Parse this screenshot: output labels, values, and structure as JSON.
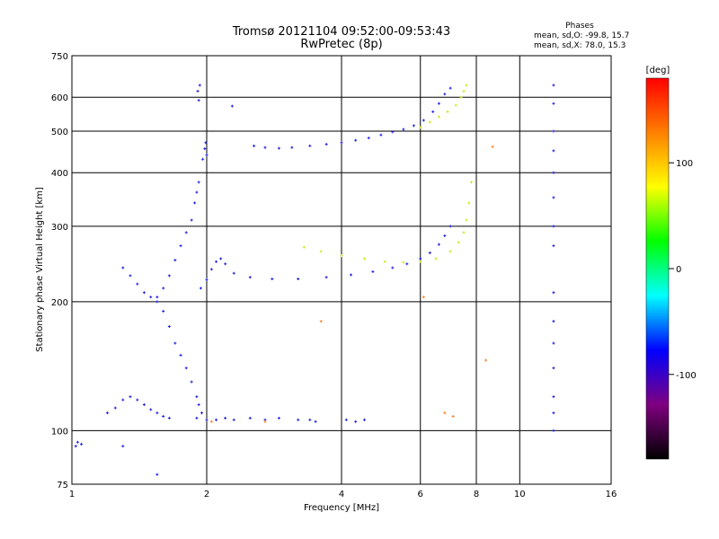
{
  "chart_data": {
    "type": "scatter",
    "title": "Tromsø 20121104 09:52:00-09:53:43",
    "subtitle": "RwPretec (8p)",
    "xlabel": "Frequency [MHz]",
    "ylabel": "Stationary phase Virtual Height [km]",
    "x_scale": "log",
    "y_scale": "log",
    "xlim": [
      1,
      16
    ],
    "ylim": [
      75,
      750
    ],
    "x_ticks": [
      1,
      2,
      4,
      6,
      8,
      10,
      16
    ],
    "y_ticks": [
      75,
      100,
      200,
      300,
      400,
      500,
      600,
      750
    ],
    "grid": true,
    "stats": {
      "heading": "Phases",
      "line_o": "mean, sd,O: -99.8, 15.7",
      "line_x": "mean, sd,X:  78.0, 15.3"
    },
    "colorbar": {
      "label": "[deg]",
      "range": [
        -180,
        180
      ],
      "ticks": [
        100,
        0,
        -100
      ],
      "colors": [
        "#ff0000",
        "#ff8000",
        "#ffff00",
        "#00ff00",
        "#00ffff",
        "#0000ff",
        "#800080",
        "#000000"
      ]
    },
    "series": [
      {
        "mode": "O",
        "phase": -100,
        "color": "#2020e0",
        "x": [
          2.55,
          2.7,
          2.9,
          3.1,
          3.4,
          3.7,
          4.0,
          4.3,
          4.6,
          4.9,
          5.2,
          5.5,
          5.8,
          6.1,
          6.4,
          6.6,
          6.8,
          7.0
        ],
        "y": [
          462,
          458,
          456,
          458,
          462,
          466,
          470,
          476,
          482,
          490,
          498,
          505,
          515,
          530,
          555,
          580,
          610,
          630
        ]
      },
      {
        "mode": "X",
        "phase": 85,
        "color": "#c8e820",
        "x": [
          6.0,
          6.3,
          6.6,
          6.9,
          7.2,
          7.4,
          7.5,
          7.6
        ],
        "y": [
          510,
          525,
          540,
          555,
          575,
          600,
          620,
          640
        ]
      },
      {
        "mode": "O",
        "phase": -100,
        "color": "#2020e0",
        "x": [
          1.94,
          2.0,
          2.05,
          2.1,
          2.15,
          2.2,
          2.3,
          2.5,
          2.8,
          3.2,
          3.7,
          4.2,
          4.7,
          5.2,
          5.6,
          6.0,
          6.3,
          6.6,
          6.8,
          7.0
        ],
        "y": [
          215,
          225,
          238,
          248,
          252,
          245,
          233,
          228,
          226,
          226,
          228,
          231,
          235,
          240,
          245,
          252,
          260,
          272,
          285,
          300
        ]
      },
      {
        "mode": "X",
        "phase": 85,
        "color": "#c8e820",
        "x": [
          3.3,
          3.6,
          4.0,
          4.5,
          5.0,
          5.5,
          6.0,
          6.5,
          7.0,
          7.3,
          7.5,
          7.6,
          7.7,
          7.8
        ],
        "y": [
          268,
          262,
          256,
          252,
          248,
          247,
          248,
          252,
          262,
          275,
          290,
          310,
          340,
          380
        ]
      },
      {
        "mode": "O",
        "phase": -100,
        "color": "#2020e0",
        "x": [
          1.3,
          1.35,
          1.4,
          1.45,
          1.5,
          1.55,
          1.6,
          1.65,
          1.7,
          1.75,
          1.8,
          1.85,
          1.9,
          1.92,
          1.95
        ],
        "y": [
          240,
          230,
          220,
          210,
          205,
          200,
          190,
          175,
          160,
          150,
          140,
          130,
          120,
          115,
          110
        ]
      },
      {
        "mode": "O",
        "phase": -100,
        "color": "#2020e0",
        "x": [
          1.55,
          1.6,
          1.65,
          1.7,
          1.75,
          1.8,
          1.85,
          1.88,
          1.9,
          1.92
        ],
        "y": [
          205,
          215,
          230,
          250,
          270,
          290,
          310,
          340,
          360,
          380
        ]
      },
      {
        "mode": "O",
        "phase": -100,
        "color": "#2020e0",
        "x": [
          1.2,
          1.25,
          1.3,
          1.35,
          1.4,
          1.45,
          1.5,
          1.55,
          1.6,
          1.65
        ],
        "y": [
          110,
          113,
          118,
          120,
          118,
          115,
          112,
          110,
          108,
          107
        ]
      },
      {
        "mode": "O",
        "phase": -100,
        "color": "#2020e0",
        "x": [
          1.9,
          2.0,
          2.1,
          2.2,
          2.3,
          2.5,
          2.7,
          2.9,
          3.2,
          3.4,
          3.5,
          4.1,
          4.3,
          4.5
        ],
        "y": [
          107,
          106,
          106,
          107,
          106,
          107,
          106,
          107,
          106,
          106,
          105,
          106,
          105,
          106
        ]
      },
      {
        "mode": "O",
        "phase": -100,
        "color": "#2020e0",
        "x": [
          11.9,
          11.9,
          11.9,
          11.9,
          11.9,
          11.9,
          11.9,
          11.9,
          11.9,
          11.9,
          11.9,
          11.9,
          11.9,
          11.9,
          11.9
        ],
        "y": [
          640,
          580,
          500,
          450,
          400,
          350,
          300,
          270,
          210,
          180,
          160,
          140,
          120,
          110,
          100
        ]
      },
      {
        "mode": "O",
        "phase": -100,
        "color": "#2020e0",
        "x": [
          1.91,
          1.92,
          1.93,
          1.96,
          1.98,
          1.99,
          2.0,
          2.28,
          1.02,
          1.03,
          1.05,
          1.3,
          1.55
        ],
        "y": [
          620,
          590,
          640,
          430,
          455,
          470,
          440,
          572,
          92,
          94,
          93,
          92,
          79
        ]
      },
      {
        "mode": "other",
        "phase": 150,
        "color": "#ff8020",
        "x": [
          2.05,
          2.7,
          6.1,
          6.8,
          7.1,
          8.4,
          8.7,
          3.6
        ],
        "y": [
          105,
          105,
          205,
          110,
          108,
          146,
          460,
          180
        ]
      }
    ]
  }
}
